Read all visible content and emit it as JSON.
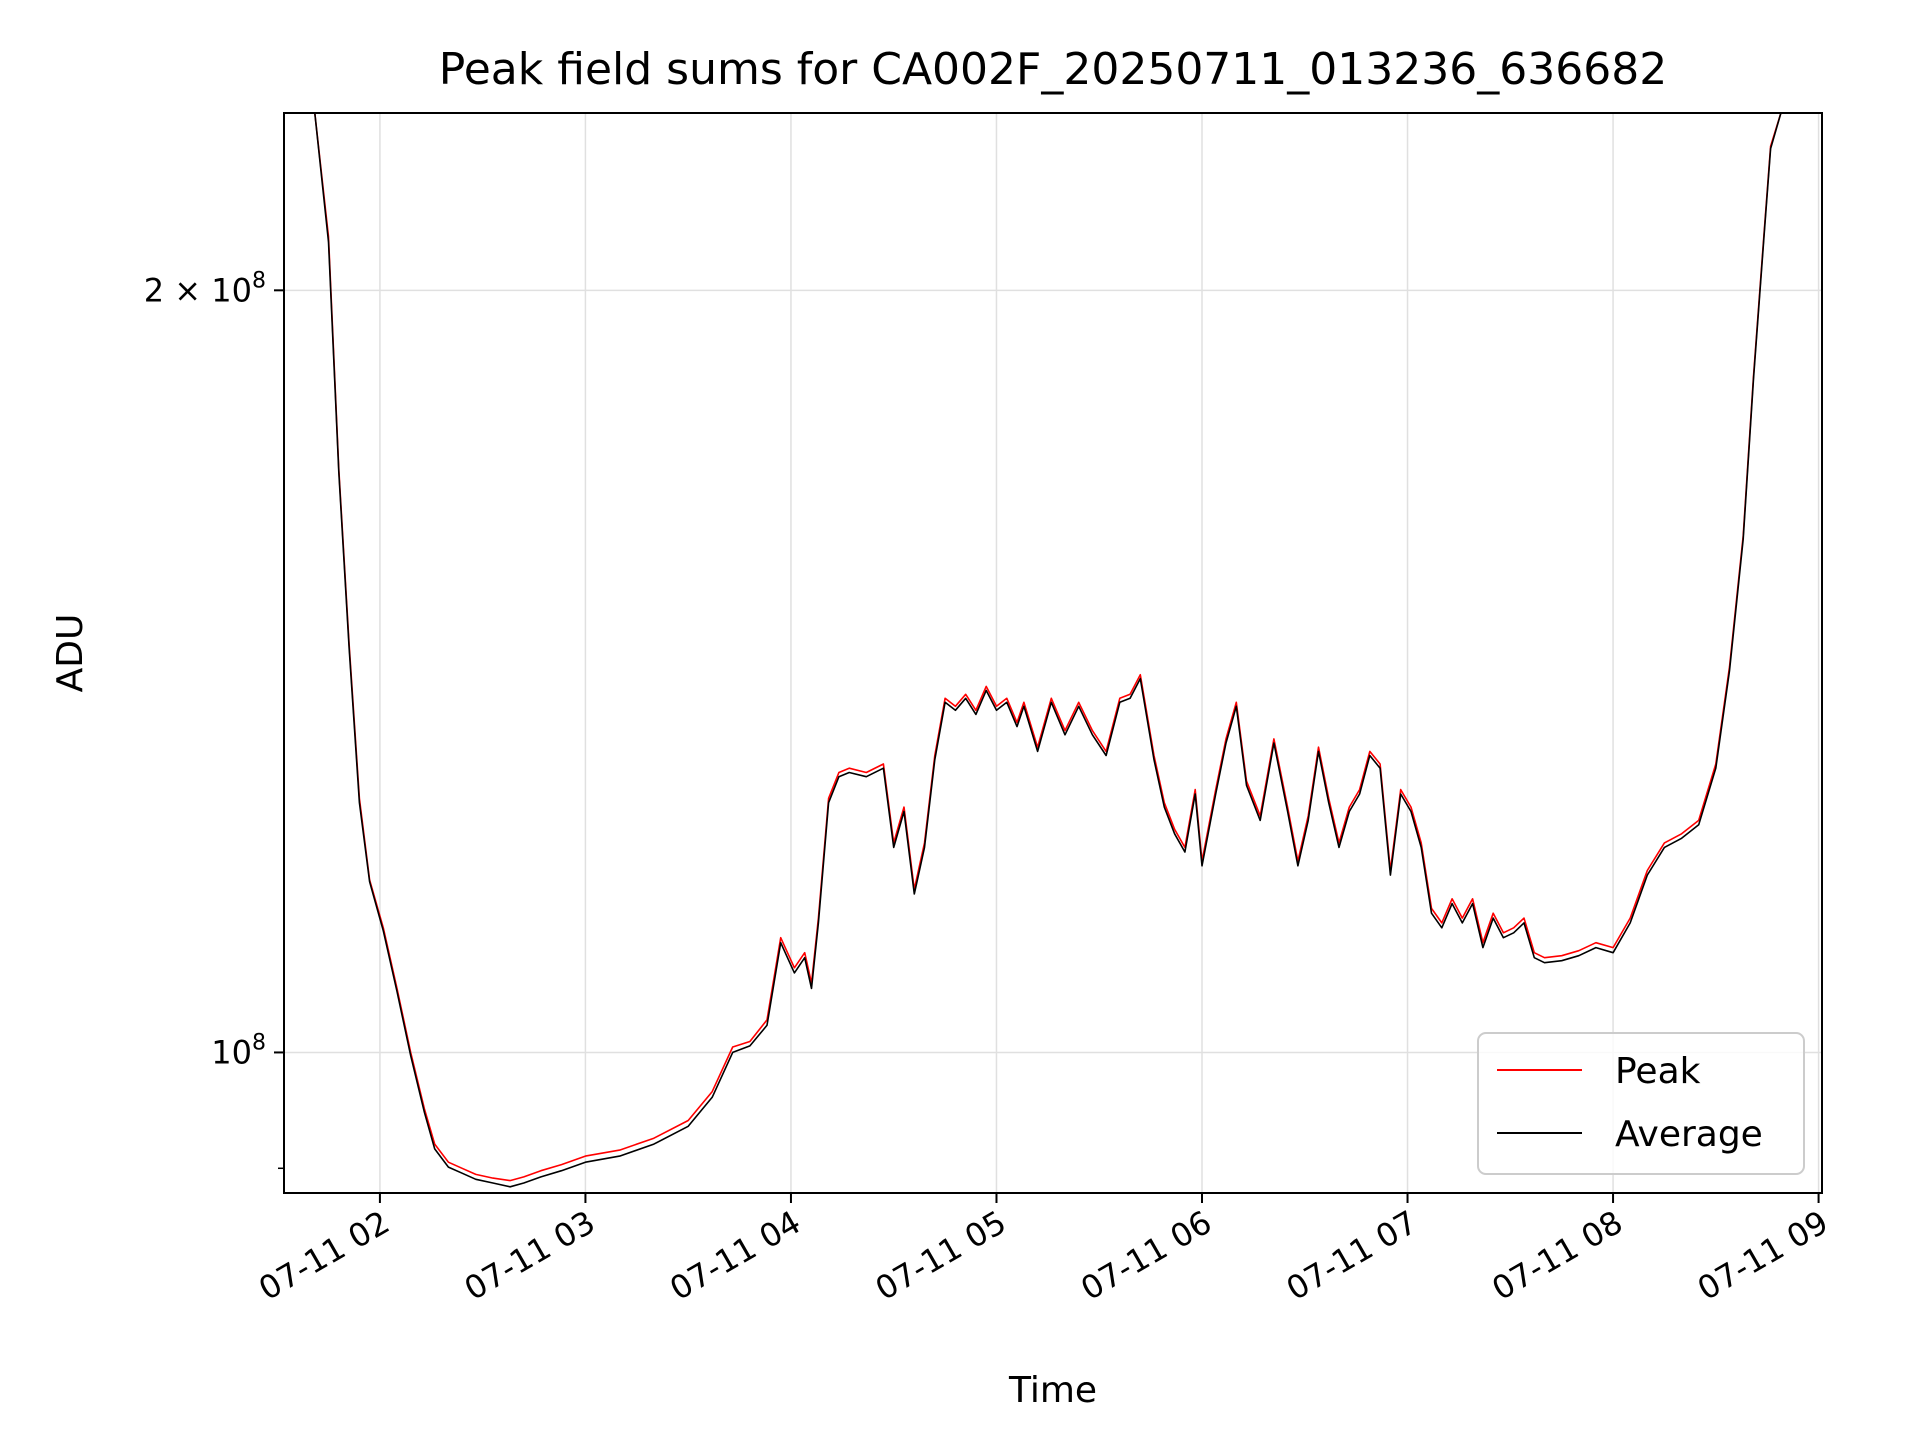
{
  "chart_data": {
    "type": "line",
    "title": "Peak field sums for CA002F_20250711_013236_636682",
    "xlabel": "Time",
    "ylabel": "ADU",
    "y_scale": "log",
    "grid": true,
    "legend_position": "lower right",
    "xlim": [
      "07-11 01:32",
      "07-11 09:01"
    ],
    "ylim": [
      88000000,
      235000000
    ],
    "x_ticks": [
      "07-11 02",
      "07-11 03",
      "07-11 04",
      "07-11 05",
      "07-11 06",
      "07-11 07",
      "07-11 08",
      "07-11 09"
    ],
    "y_ticks": [
      {
        "value": 100000000,
        "mantissa": "10",
        "exponent": "8"
      },
      {
        "value": 200000000,
        "mantissa": "2 × 10",
        "exponent": "8"
      }
    ],
    "series": [
      {
        "name": "Peak",
        "color": "#ff0000",
        "x": [
          "07-11 01:32",
          "07-11 01:41",
          "07-11 01:45",
          "07-11 01:48",
          "07-11 01:51",
          "07-11 01:54",
          "07-11 01:57",
          "07-11 02:01",
          "07-11 02:05",
          "07-11 02:09",
          "07-11 02:13",
          "07-11 02:16",
          "07-11 02:20",
          "07-11 02:24",
          "07-11 02:28",
          "07-11 02:33",
          "07-11 02:38",
          "07-11 02:42",
          "07-11 02:47",
          "07-11 02:53",
          "07-11 03:00",
          "07-11 03:10",
          "07-11 03:20",
          "07-11 03:30",
          "07-11 03:37",
          "07-11 03:43",
          "07-11 03:48",
          "07-11 03:53",
          "07-11 03:57",
          "07-11 04:01",
          "07-11 04:04",
          "07-11 04:06",
          "07-11 04:08",
          "07-11 04:11",
          "07-11 04:14",
          "07-11 04:17",
          "07-11 04:22",
          "07-11 04:27",
          "07-11 04:30",
          "07-11 04:33",
          "07-11 04:36",
          "07-11 04:39",
          "07-11 04:42",
          "07-11 04:45",
          "07-11 04:48",
          "07-11 04:51",
          "07-11 04:54",
          "07-11 04:57",
          "07-11 05:00",
          "07-11 05:03",
          "07-11 05:06",
          "07-11 05:08",
          "07-11 05:12",
          "07-11 05:16",
          "07-11 05:20",
          "07-11 05:24",
          "07-11 05:28",
          "07-11 05:32",
          "07-11 05:36",
          "07-11 05:39",
          "07-11 05:42",
          "07-11 05:46",
          "07-11 05:49",
          "07-11 05:52",
          "07-11 05:55",
          "07-11 05:58",
          "07-11 06:00",
          "07-11 06:04",
          "07-11 06:07",
          "07-11 06:10",
          "07-11 06:13",
          "07-11 06:17",
          "07-11 06:21",
          "07-11 06:25",
          "07-11 06:28",
          "07-11 06:31",
          "07-11 06:34",
          "07-11 06:37",
          "07-11 06:40",
          "07-11 06:43",
          "07-11 06:46",
          "07-11 06:49",
          "07-11 06:52",
          "07-11 06:55",
          "07-11 06:58",
          "07-11 07:01",
          "07-11 07:04",
          "07-11 07:07",
          "07-11 07:10",
          "07-11 07:13",
          "07-11 07:16",
          "07-11 07:19",
          "07-11 07:22",
          "07-11 07:25",
          "07-11 07:28",
          "07-11 07:31",
          "07-11 07:34",
          "07-11 07:37",
          "07-11 07:40",
          "07-11 07:45",
          "07-11 07:50",
          "07-11 07:55",
          "07-11 08:00",
          "07-11 08:05",
          "07-11 08:10",
          "07-11 08:15",
          "07-11 08:20",
          "07-11 08:25",
          "07-11 08:30",
          "07-11 08:34",
          "07-11 08:38",
          "07-11 08:41",
          "07-11 08:44",
          "07-11 08:46",
          "07-11 08:49",
          "07-11 08:54",
          "07-11 09:01"
        ],
        "y": [
          235000000,
          235000000,
          210000000,
          170000000,
          145000000,
          126000000,
          117000000,
          112000000,
          106000000,
          100000000,
          95000000,
          92000000,
          90500000,
          90000000,
          89500000,
          89200000,
          89000000,
          89300000,
          89800000,
          90300000,
          91000000,
          91500000,
          92500000,
          94000000,
          96500000,
          100500000,
          101000000,
          103000000,
          111000000,
          108000000,
          109500000,
          106500000,
          113000000,
          126000000,
          129000000,
          129500000,
          129000000,
          130000000,
          121000000,
          125000000,
          116000000,
          121000000,
          131000000,
          138000000,
          137000000,
          138500000,
          136500000,
          139500000,
          137000000,
          138000000,
          135000000,
          137500000,
          132000000,
          138000000,
          134000000,
          137500000,
          134000000,
          131500000,
          138000000,
          138500000,
          141000000,
          131000000,
          125500000,
          122500000,
          120500000,
          127000000,
          119000000,
          127000000,
          133000000,
          137500000,
          128000000,
          124000000,
          133000000,
          125000000,
          119000000,
          124000000,
          132000000,
          126000000,
          121000000,
          125000000,
          127000000,
          131500000,
          130000000,
          118000000,
          127000000,
          125000000,
          121000000,
          114000000,
          112500000,
          115000000,
          113000000,
          115000000,
          110500000,
          113500000,
          111500000,
          112000000,
          113000000,
          109500000,
          109000000,
          109200000,
          109700000,
          110500000,
          110000000,
          113000000,
          118000000,
          121000000,
          122000000,
          123500000,
          130000000,
          142000000,
          160000000,
          185000000,
          210000000,
          228000000,
          235000000,
          235000000,
          235000000
        ]
      },
      {
        "name": "Average",
        "color": "#000000",
        "x": [
          "07-11 01:32",
          "07-11 01:41",
          "07-11 01:45",
          "07-11 01:48",
          "07-11 01:51",
          "07-11 01:54",
          "07-11 01:57",
          "07-11 02:01",
          "07-11 02:05",
          "07-11 02:09",
          "07-11 02:13",
          "07-11 02:16",
          "07-11 02:20",
          "07-11 02:24",
          "07-11 02:28",
          "07-11 02:33",
          "07-11 02:38",
          "07-11 02:42",
          "07-11 02:47",
          "07-11 02:53",
          "07-11 03:00",
          "07-11 03:10",
          "07-11 03:20",
          "07-11 03:30",
          "07-11 03:37",
          "07-11 03:43",
          "07-11 03:48",
          "07-11 03:53",
          "07-11 03:57",
          "07-11 04:01",
          "07-11 04:04",
          "07-11 04:06",
          "07-11 04:08",
          "07-11 04:11",
          "07-11 04:14",
          "07-11 04:17",
          "07-11 04:22",
          "07-11 04:27",
          "07-11 04:30",
          "07-11 04:33",
          "07-11 04:36",
          "07-11 04:39",
          "07-11 04:42",
          "07-11 04:45",
          "07-11 04:48",
          "07-11 04:51",
          "07-11 04:54",
          "07-11 04:57",
          "07-11 05:00",
          "07-11 05:03",
          "07-11 05:06",
          "07-11 05:08",
          "07-11 05:12",
          "07-11 05:16",
          "07-11 05:20",
          "07-11 05:24",
          "07-11 05:28",
          "07-11 05:32",
          "07-11 05:36",
          "07-11 05:39",
          "07-11 05:42",
          "07-11 05:46",
          "07-11 05:49",
          "07-11 05:52",
          "07-11 05:55",
          "07-11 05:58",
          "07-11 06:00",
          "07-11 06:04",
          "07-11 06:07",
          "07-11 06:10",
          "07-11 06:13",
          "07-11 06:17",
          "07-11 06:21",
          "07-11 06:25",
          "07-11 06:28",
          "07-11 06:31",
          "07-11 06:34",
          "07-11 06:37",
          "07-11 06:40",
          "07-11 06:43",
          "07-11 06:46",
          "07-11 06:49",
          "07-11 06:52",
          "07-11 06:55",
          "07-11 06:58",
          "07-11 07:01",
          "07-11 07:04",
          "07-11 07:07",
          "07-11 07:10",
          "07-11 07:13",
          "07-11 07:16",
          "07-11 07:19",
          "07-11 07:22",
          "07-11 07:25",
          "07-11 07:28",
          "07-11 07:31",
          "07-11 07:34",
          "07-11 07:37",
          "07-11 07:40",
          "07-11 07:45",
          "07-11 07:50",
          "07-11 07:55",
          "07-11 08:00",
          "07-11 08:05",
          "07-11 08:10",
          "07-11 08:15",
          "07-11 08:20",
          "07-11 08:25",
          "07-11 08:30",
          "07-11 08:34",
          "07-11 08:38",
          "07-11 08:41",
          "07-11 08:44",
          "07-11 08:46",
          "07-11 08:49",
          "07-11 08:54",
          "07-11 09:01"
        ],
        "y": [
          235000000,
          235000000,
          209000000,
          169500000,
          144500000,
          125500000,
          116800000,
          111700000,
          105700000,
          99700000,
          94700000,
          91600000,
          90100000,
          89600000,
          89100000,
          88800000,
          88500000,
          88800000,
          89300000,
          89800000,
          90500000,
          91000000,
          92000000,
          93500000,
          96000000,
          100000000,
          100600000,
          102500000,
          110500000,
          107500000,
          109000000,
          106000000,
          112500000,
          125500000,
          128500000,
          129000000,
          128500000,
          129500000,
          120500000,
          124500000,
          115500000,
          120500000,
          130500000,
          137500000,
          136500000,
          138000000,
          136000000,
          139000000,
          136500000,
          137500000,
          134500000,
          137000000,
          131500000,
          137500000,
          133500000,
          137000000,
          133500000,
          131000000,
          137500000,
          138000000,
          140500000,
          130500000,
          125000000,
          122000000,
          120000000,
          126500000,
          118500000,
          126500000,
          132500000,
          137000000,
          127500000,
          123500000,
          132500000,
          124500000,
          118500000,
          123500000,
          131500000,
          125500000,
          120500000,
          124500000,
          126500000,
          131000000,
          129500000,
          117500000,
          126500000,
          124500000,
          120500000,
          113500000,
          112000000,
          114500000,
          112500000,
          114500000,
          110000000,
          113000000,
          111000000,
          111500000,
          112500000,
          109000000,
          108500000,
          108700000,
          109200000,
          110000000,
          109500000,
          112500000,
          117500000,
          120500000,
          121500000,
          123000000,
          129500000,
          141500000,
          159500000,
          184500000,
          209500000,
          227500000,
          235000000,
          235000000,
          235000000
        ]
      }
    ]
  }
}
